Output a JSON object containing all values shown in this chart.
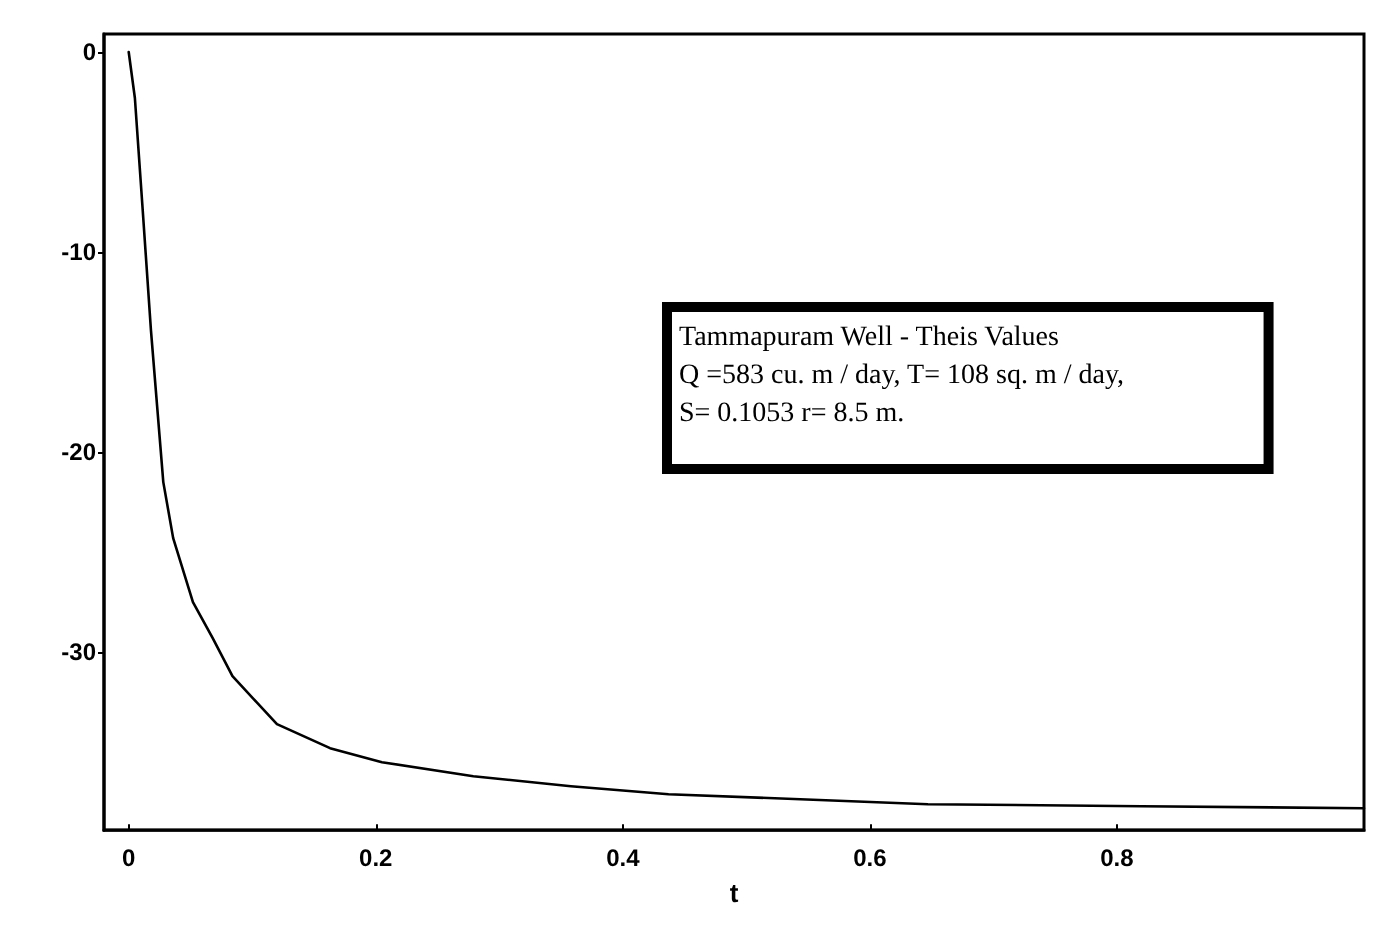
{
  "chart_data": {
    "type": "line",
    "xlabel": "t",
    "x": [
      0,
      0.005,
      0.011,
      0.018,
      0.023,
      0.028,
      0.036,
      0.052,
      0.068,
      0.084,
      0.12,
      0.163,
      0.205,
      0.279,
      0.358,
      0.437,
      0.647,
      0.82,
      1.0
    ],
    "series": [
      {
        "color": "#000000",
        "values": [
          0,
          -2.3,
          -7.6,
          -13.9,
          -17.7,
          -21.5,
          -24.3,
          -27.5,
          -29.3,
          -31.2,
          -33.6,
          -34.8,
          -35.5,
          -36.2,
          -36.7,
          -37.1,
          -37.6,
          -37.7,
          -37.8
        ]
      }
    ],
    "xlim": [
      -0.02,
      1.0
    ],
    "xticks": [
      0,
      0.2,
      0.4,
      0.6,
      0.8
    ],
    "ylim": [
      -38.9,
      0.9
    ],
    "yticks": [
      0,
      -10,
      -20,
      -30
    ],
    "grid": false,
    "marker": "none",
    "line_style": "solid",
    "annotations": [
      "Tammapuram Well - Theis Values",
      "Q =583 cu. m / day, T= 108 sq. m / day,",
      "S= 0.1053 r= 8.5 m."
    ]
  }
}
